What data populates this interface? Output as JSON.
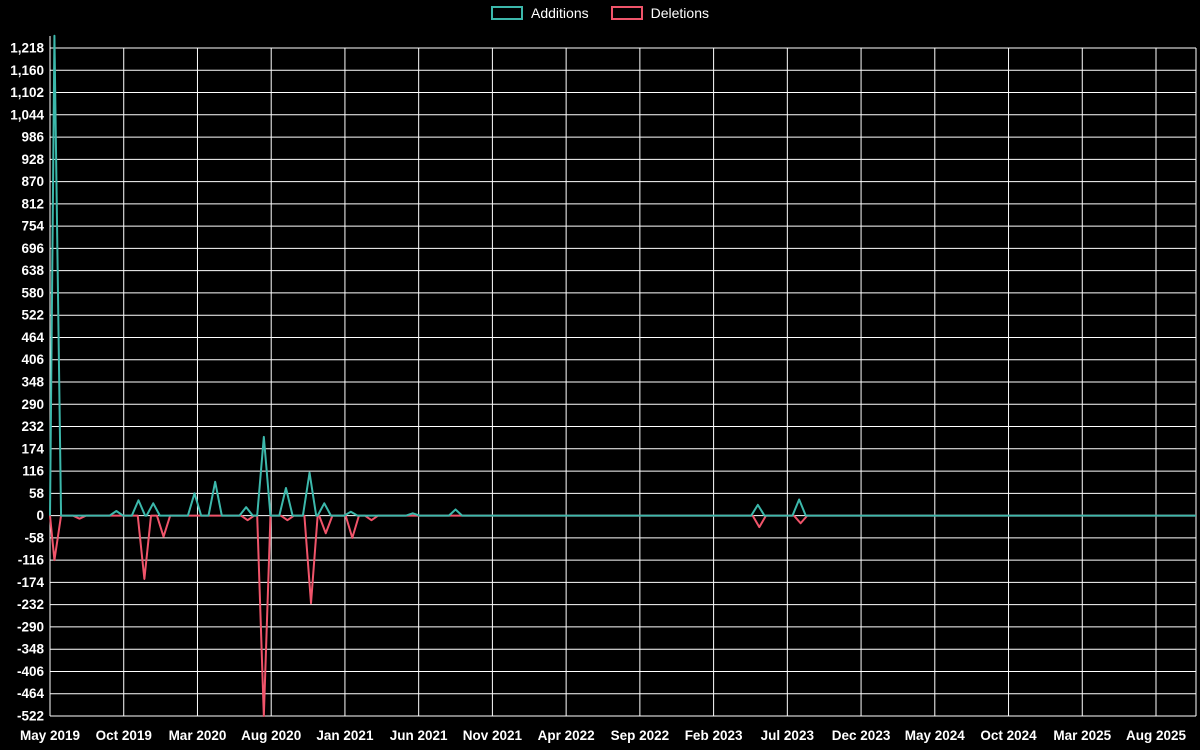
{
  "chart_data": {
    "type": "line",
    "title": "",
    "background_color": "#000000",
    "grid_color": "#ffffff",
    "baseline": 0,
    "legend_position": "top-center",
    "series": [
      {
        "name": "Additions",
        "color": "#3cb8ab",
        "spikes": [
          [
            0.3,
            1250
          ],
          [
            4.5,
            12
          ],
          [
            6.0,
            40
          ],
          [
            7.0,
            32
          ],
          [
            9.8,
            58
          ],
          [
            11.2,
            88
          ],
          [
            13.3,
            22
          ],
          [
            14.5,
            205
          ],
          [
            16.0,
            72
          ],
          [
            17.6,
            112
          ],
          [
            18.6,
            32
          ],
          [
            20.4,
            10
          ],
          [
            24.6,
            6
          ],
          [
            27.5,
            16
          ],
          [
            48.0,
            28
          ],
          [
            50.8,
            42
          ]
        ]
      },
      {
        "name": "Deletions",
        "color": "#f0546a",
        "spikes": [
          [
            0.3,
            -116
          ],
          [
            2.0,
            -8
          ],
          [
            6.4,
            -165
          ],
          [
            7.7,
            -55
          ],
          [
            13.4,
            -12
          ],
          [
            14.5,
            -522
          ],
          [
            16.1,
            -12
          ],
          [
            17.7,
            -228
          ],
          [
            18.7,
            -46
          ],
          [
            20.5,
            -58
          ],
          [
            21.8,
            -12
          ],
          [
            48.1,
            -30
          ],
          [
            50.9,
            -20
          ]
        ]
      }
    ],
    "x_axis": {
      "unit": "months since May 2019",
      "tick_months": [
        0,
        5,
        10,
        15,
        20,
        25,
        30,
        35,
        40,
        45,
        50,
        55,
        60,
        65,
        70,
        75
      ],
      "labels": [
        "May 2019",
        "Oct 2019",
        "Mar 2020",
        "Aug 2020",
        "Jan 2021",
        "Jun 2021",
        "Nov 2021",
        "Apr 2022",
        "Sep 2022",
        "Feb 2023",
        "Jul 2023",
        "Dec 2023",
        "May 2024",
        "Oct 2024",
        "Mar 2025",
        "Aug 2025"
      ]
    },
    "y_axis": {
      "min": -522,
      "max": 1218,
      "step": 58,
      "ticks": [
        1218,
        1160,
        1102,
        1044,
        986,
        928,
        870,
        812,
        754,
        696,
        638,
        580,
        522,
        464,
        406,
        348,
        290,
        232,
        174,
        116,
        58,
        0,
        -58,
        -116,
        -174,
        -232,
        -290,
        -348,
        -406,
        -464,
        -522
      ]
    }
  }
}
